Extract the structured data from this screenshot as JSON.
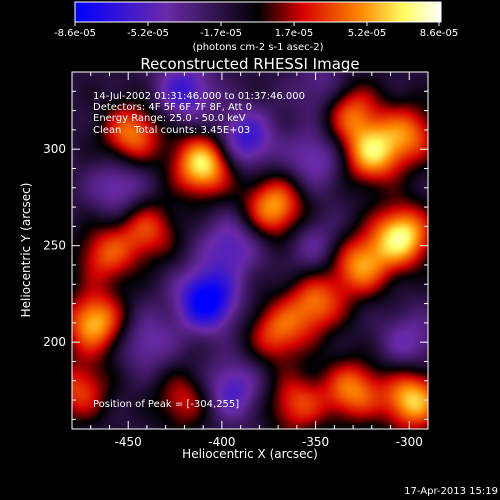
{
  "colorbar": {
    "tick_labels": [
      "-8.6e-05",
      "-5.2e-05",
      "-1.7e-05",
      "1.7e-05",
      "5.2e-05",
      "8.6e-05"
    ],
    "units_label": "(photons cm-2 s-1 asec-2)",
    "range": [
      -8.6e-05,
      8.6e-05
    ]
  },
  "title": "Reconstructed RHESSI Image",
  "annotations": [
    "14-Jul-2002 01:31:46.000 to 01:37:46.000",
    "Detectors: 4F 5F 6F 7F 8F, Att 0",
    "Energy Range: 25.0 - 50.0 keV",
    "Clean    Total counts: 3.45E+03"
  ],
  "peak_label": "Position of Peak = [-304,255]",
  "footer_date": "17-Apr-2013 15:19",
  "chart_data": {
    "type": "heatmap",
    "xlabel": "Heliocentric X (arcsec)",
    "ylabel": "Heliocentric Y (arcsec)",
    "xlim": [
      -480,
      -290
    ],
    "ylim": [
      155,
      340
    ],
    "xticks": [
      -450,
      -400,
      -350,
      -300
    ],
    "xtick_labels": [
      "-450",
      "-400",
      "-350",
      "-300"
    ],
    "yticks": [
      200,
      250,
      300
    ],
    "ytick_labels": [
      "200",
      "250",
      "300"
    ],
    "peak": [
      -304,
      255
    ],
    "colormap": [
      "#0000ff",
      "#6a2aa8",
      "#000000",
      "#d40000",
      "#ff8800",
      "#ffff66",
      "#ffffff"
    ],
    "sources": [
      {
        "x": -410,
        "y": 292,
        "amp": 1.0
      },
      {
        "x": -320,
        "y": 298,
        "amp": 0.85
      },
      {
        "x": -448,
        "y": 308,
        "amp": 0.7
      },
      {
        "x": -332,
        "y": 320,
        "amp": 0.65
      },
      {
        "x": -300,
        "y": 308,
        "amp": 0.6
      },
      {
        "x": -372,
        "y": 270,
        "amp": 0.8
      },
      {
        "x": -304,
        "y": 255,
        "amp": 1.0
      },
      {
        "x": -326,
        "y": 240,
        "amp": 0.75
      },
      {
        "x": -462,
        "y": 245,
        "amp": 0.55
      },
      {
        "x": -440,
        "y": 258,
        "amp": 0.55
      },
      {
        "x": -350,
        "y": 220,
        "amp": 0.65
      },
      {
        "x": -370,
        "y": 205,
        "amp": 0.6
      },
      {
        "x": -468,
        "y": 210,
        "amp": 0.85
      },
      {
        "x": -330,
        "y": 175,
        "amp": 0.7
      },
      {
        "x": -298,
        "y": 170,
        "amp": 0.9
      },
      {
        "x": -360,
        "y": 168,
        "amp": 0.55
      },
      {
        "x": -476,
        "y": 175,
        "amp": 0.55
      },
      {
        "x": -420,
        "y": 170,
        "amp": 0.45
      },
      {
        "x": -408,
        "y": 222,
        "amp": -0.9
      },
      {
        "x": -388,
        "y": 305,
        "amp": -0.6
      },
      {
        "x": -395,
        "y": 250,
        "amp": -0.45
      },
      {
        "x": -350,
        "y": 295,
        "amp": -0.4
      },
      {
        "x": -420,
        "y": 330,
        "amp": -0.55
      },
      {
        "x": -455,
        "y": 280,
        "amp": -0.4
      },
      {
        "x": -440,
        "y": 200,
        "amp": -0.35
      },
      {
        "x": -300,
        "y": 200,
        "amp": -0.35
      },
      {
        "x": -395,
        "y": 175,
        "amp": -0.5
      },
      {
        "x": -350,
        "y": 250,
        "amp": -0.3
      },
      {
        "x": -345,
        "y": 330,
        "amp": -0.35
      }
    ]
  }
}
